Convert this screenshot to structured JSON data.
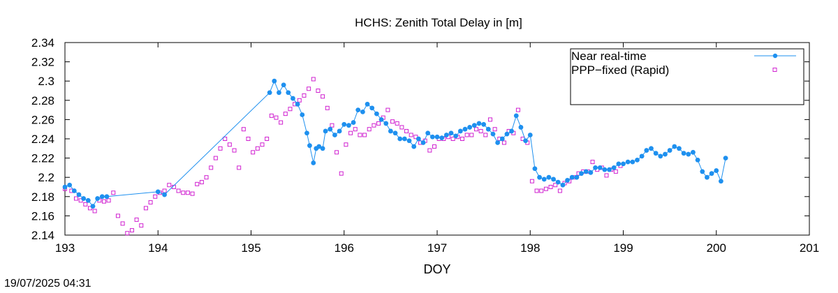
{
  "chart_data": {
    "type": "scatter",
    "title": "HCHS: Zenith Total Delay in [m]",
    "xlabel": "DOY",
    "ylabel": "",
    "xlim": [
      193,
      201
    ],
    "ylim": [
      2.14,
      2.34
    ],
    "xticks": [
      "193",
      "194",
      "195",
      "196",
      "197",
      "198",
      "199",
      "200",
      "201"
    ],
    "yticks": [
      "2.14",
      "2.16",
      "2.18",
      "2.2",
      "2.22",
      "2.24",
      "2.26",
      "2.28",
      "2.3",
      "2.32",
      "2.34"
    ],
    "grid": false,
    "legend_position": "top-right",
    "series": [
      {
        "name": "Near real-time",
        "style": "linespoints",
        "color": "#1e90ef",
        "x": [
          193.0,
          193.05,
          193.1,
          193.15,
          193.2,
          193.25,
          193.3,
          193.35,
          193.4,
          193.45,
          194.0,
          194.07,
          195.2,
          195.25,
          195.3,
          195.35,
          195.4,
          195.45,
          195.5,
          195.55,
          195.6,
          195.63,
          195.67,
          195.7,
          195.73,
          195.77,
          195.8,
          195.85,
          195.9,
          195.95,
          196.0,
          196.05,
          196.1,
          196.15,
          196.2,
          196.25,
          196.3,
          196.35,
          196.4,
          196.45,
          196.5,
          196.55,
          196.6,
          196.65,
          196.7,
          196.75,
          196.8,
          196.85,
          196.9,
          196.95,
          197.0,
          197.05,
          197.1,
          197.15,
          197.2,
          197.25,
          197.3,
          197.35,
          197.4,
          197.45,
          197.5,
          197.55,
          197.6,
          197.65,
          197.7,
          197.75,
          197.8,
          197.85,
          197.9,
          197.95,
          198.0,
          198.05,
          198.1,
          198.15,
          198.2,
          198.25,
          198.3,
          198.35,
          198.4,
          198.45,
          198.5,
          198.55,
          198.6,
          198.65,
          198.7,
          198.75,
          198.8,
          198.85,
          198.9,
          198.95,
          199.0,
          199.05,
          199.1,
          199.15,
          199.2,
          199.25,
          199.3,
          199.35,
          199.4,
          199.45,
          199.5,
          199.55,
          199.6,
          199.65,
          199.7,
          199.75,
          199.8,
          199.85,
          199.9,
          199.95,
          200.0,
          200.05,
          200.1
        ],
        "y": [
          2.19,
          2.192,
          2.186,
          2.182,
          2.178,
          2.176,
          2.17,
          2.178,
          2.18,
          2.18,
          2.185,
          2.182,
          2.288,
          2.3,
          2.288,
          2.296,
          2.288,
          2.282,
          2.276,
          2.265,
          2.246,
          2.233,
          2.215,
          2.23,
          2.232,
          2.23,
          2.248,
          2.25,
          2.244,
          2.248,
          2.255,
          2.254,
          2.257,
          2.27,
          2.268,
          2.276,
          2.272,
          2.266,
          2.26,
          2.256,
          2.248,
          2.246,
          2.24,
          2.24,
          2.238,
          2.232,
          2.24,
          2.236,
          2.246,
          2.242,
          2.242,
          2.241,
          2.244,
          2.246,
          2.243,
          2.248,
          2.25,
          2.252,
          2.254,
          2.256,
          2.255,
          2.25,
          2.245,
          2.236,
          2.24,
          2.245,
          2.248,
          2.264,
          2.252,
          2.238,
          2.244,
          2.209,
          2.2,
          2.198,
          2.2,
          2.198,
          2.195,
          2.192,
          2.197,
          2.2,
          2.2,
          2.204,
          2.206,
          2.205,
          2.21,
          2.21,
          2.208,
          2.208,
          2.21,
          2.214,
          2.214,
          2.216,
          2.216,
          2.218,
          2.222,
          2.228,
          2.23,
          2.225,
          2.222,
          2.224,
          2.228,
          2.232,
          2.23,
          2.225,
          2.224,
          2.226,
          2.218,
          2.206,
          2.2,
          2.204,
          2.207,
          2.196,
          2.22
        ]
      },
      {
        "name": "PPP−fixed (Rapid)",
        "style": "points",
        "color": "#d020d0",
        "x": [
          193.0,
          193.07,
          193.12,
          193.17,
          193.22,
          193.27,
          193.32,
          193.37,
          193.42,
          193.47,
          193.52,
          193.57,
          193.62,
          193.67,
          193.72,
          193.77,
          193.82,
          193.87,
          193.92,
          193.97,
          194.02,
          194.07,
          194.12,
          194.17,
          194.22,
          194.27,
          194.32,
          194.37,
          194.42,
          194.47,
          194.52,
          194.57,
          194.62,
          194.67,
          194.72,
          194.77,
          194.82,
          194.87,
          194.92,
          194.97,
          195.02,
          195.07,
          195.12,
          195.17,
          195.22,
          195.27,
          195.32,
          195.37,
          195.42,
          195.47,
          195.52,
          195.57,
          195.62,
          195.67,
          195.72,
          195.77,
          195.82,
          195.87,
          195.92,
          195.97,
          196.02,
          196.07,
          196.12,
          196.17,
          196.22,
          196.27,
          196.32,
          196.37,
          196.42,
          196.47,
          196.52,
          196.57,
          196.62,
          196.67,
          196.72,
          196.77,
          196.82,
          196.87,
          196.92,
          196.97,
          197.02,
          197.07,
          197.12,
          197.17,
          197.22,
          197.27,
          197.32,
          197.37,
          197.42,
          197.47,
          197.52,
          197.57,
          197.62,
          197.67,
          197.72,
          197.77,
          197.82,
          197.87,
          197.92,
          197.97,
          198.02,
          198.07,
          198.12,
          198.17,
          198.22,
          198.27,
          198.32,
          198.37,
          198.42,
          198.47,
          198.52,
          198.57,
          198.62,
          198.67,
          198.72,
          198.77,
          198.82,
          198.87,
          198.92,
          198.97
        ],
        "y": [
          2.188,
          2.186,
          2.178,
          2.176,
          2.172,
          2.168,
          2.165,
          2.176,
          2.175,
          2.176,
          2.184,
          2.16,
          2.152,
          2.142,
          2.145,
          2.156,
          2.15,
          2.168,
          2.174,
          2.18,
          2.184,
          2.186,
          2.192,
          2.19,
          2.186,
          2.184,
          2.184,
          2.183,
          2.193,
          2.195,
          2.2,
          2.21,
          2.22,
          2.23,
          2.24,
          2.234,
          2.228,
          2.21,
          2.25,
          2.24,
          2.226,
          2.23,
          2.234,
          2.24,
          2.264,
          2.262,
          2.257,
          2.266,
          2.271,
          2.276,
          2.28,
          2.285,
          2.292,
          2.302,
          2.29,
          2.284,
          2.272,
          2.254,
          2.226,
          2.204,
          2.234,
          2.246,
          2.25,
          2.244,
          2.244,
          2.25,
          2.254,
          2.256,
          2.262,
          2.27,
          2.258,
          2.256,
          2.252,
          2.248,
          2.244,
          2.242,
          2.236,
          2.238,
          2.228,
          2.232,
          2.24,
          2.24,
          2.242,
          2.24,
          2.242,
          2.24,
          2.244,
          2.244,
          2.25,
          2.248,
          2.244,
          2.26,
          2.25,
          2.24,
          2.236,
          2.248,
          2.246,
          2.27,
          2.24,
          2.236,
          2.196,
          2.186,
          2.186,
          2.188,
          2.19,
          2.192,
          2.186,
          2.194,
          2.196,
          2.2,
          2.204,
          2.206,
          2.206,
          2.216,
          2.208,
          2.21,
          2.202,
          2.208,
          2.206,
          2.212
        ]
      }
    ]
  },
  "timestamp": "19/07/2025 04:31"
}
